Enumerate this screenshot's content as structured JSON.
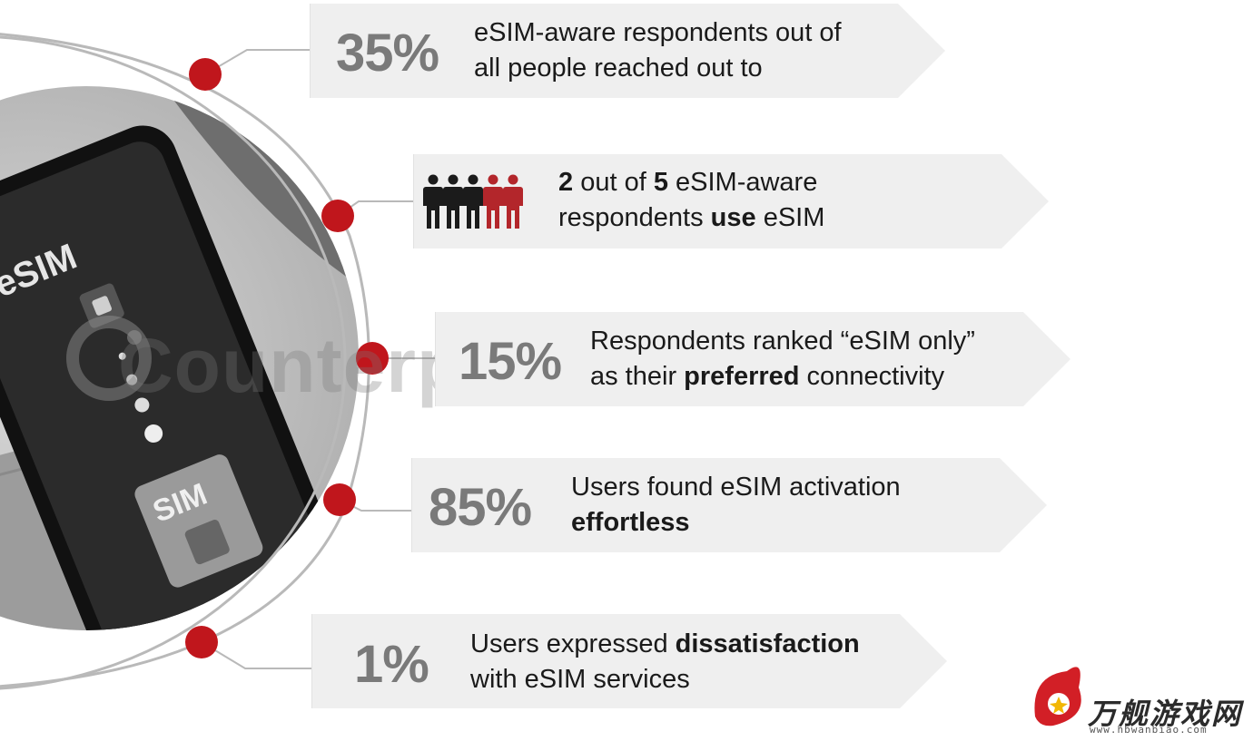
{
  "watermark": "Counterpoint",
  "photo": {
    "esim_label": "eSIM",
    "sim_label": "SIM"
  },
  "items": [
    {
      "stat": "35%",
      "lines": [
        [
          {
            "t": "eSIM-aware respondents out of",
            "b": false
          }
        ],
        [
          {
            "t": "all people reached out to",
            "b": false
          }
        ]
      ]
    },
    {
      "stat": "",
      "icon": "people-icon",
      "lines": [
        [
          {
            "t": "2",
            "b": true
          },
          {
            "t": " out of ",
            "b": false
          },
          {
            "t": "5",
            "b": true
          },
          {
            "t": " eSIM-aware",
            "b": false
          }
        ],
        [
          {
            "t": "respondents ",
            "b": false
          },
          {
            "t": "use",
            "b": true
          },
          {
            "t": " eSIM",
            "b": false
          }
        ]
      ]
    },
    {
      "stat": "15%",
      "lines": [
        [
          {
            "t": "Respondents ranked “eSIM only”",
            "b": false
          }
        ],
        [
          {
            "t": "as their ",
            "b": false
          },
          {
            "t": "preferred",
            "b": true
          },
          {
            "t": " connectivity",
            "b": false
          }
        ]
      ]
    },
    {
      "stat": "85%",
      "lines": [
        [
          {
            "t": "Users found eSIM activation",
            "b": false
          }
        ],
        [
          {
            "t": "effortless",
            "b": true
          }
        ]
      ]
    },
    {
      "stat": "1%",
      "lines": [
        [
          {
            "t": "Users expressed ",
            "b": false
          },
          {
            "t": "dissatisfaction",
            "b": true
          }
        ],
        [
          {
            "t": "with eSIM services",
            "b": false
          }
        ]
      ]
    }
  ],
  "colors": {
    "dot": "#c0161c",
    "person_dark": "#1b1b1b",
    "person_red": "#b3262b",
    "arc": "#b9b9b9"
  },
  "logo": {
    "text": "万舰游戏网",
    "url": "www.hbwanbiao.com"
  }
}
